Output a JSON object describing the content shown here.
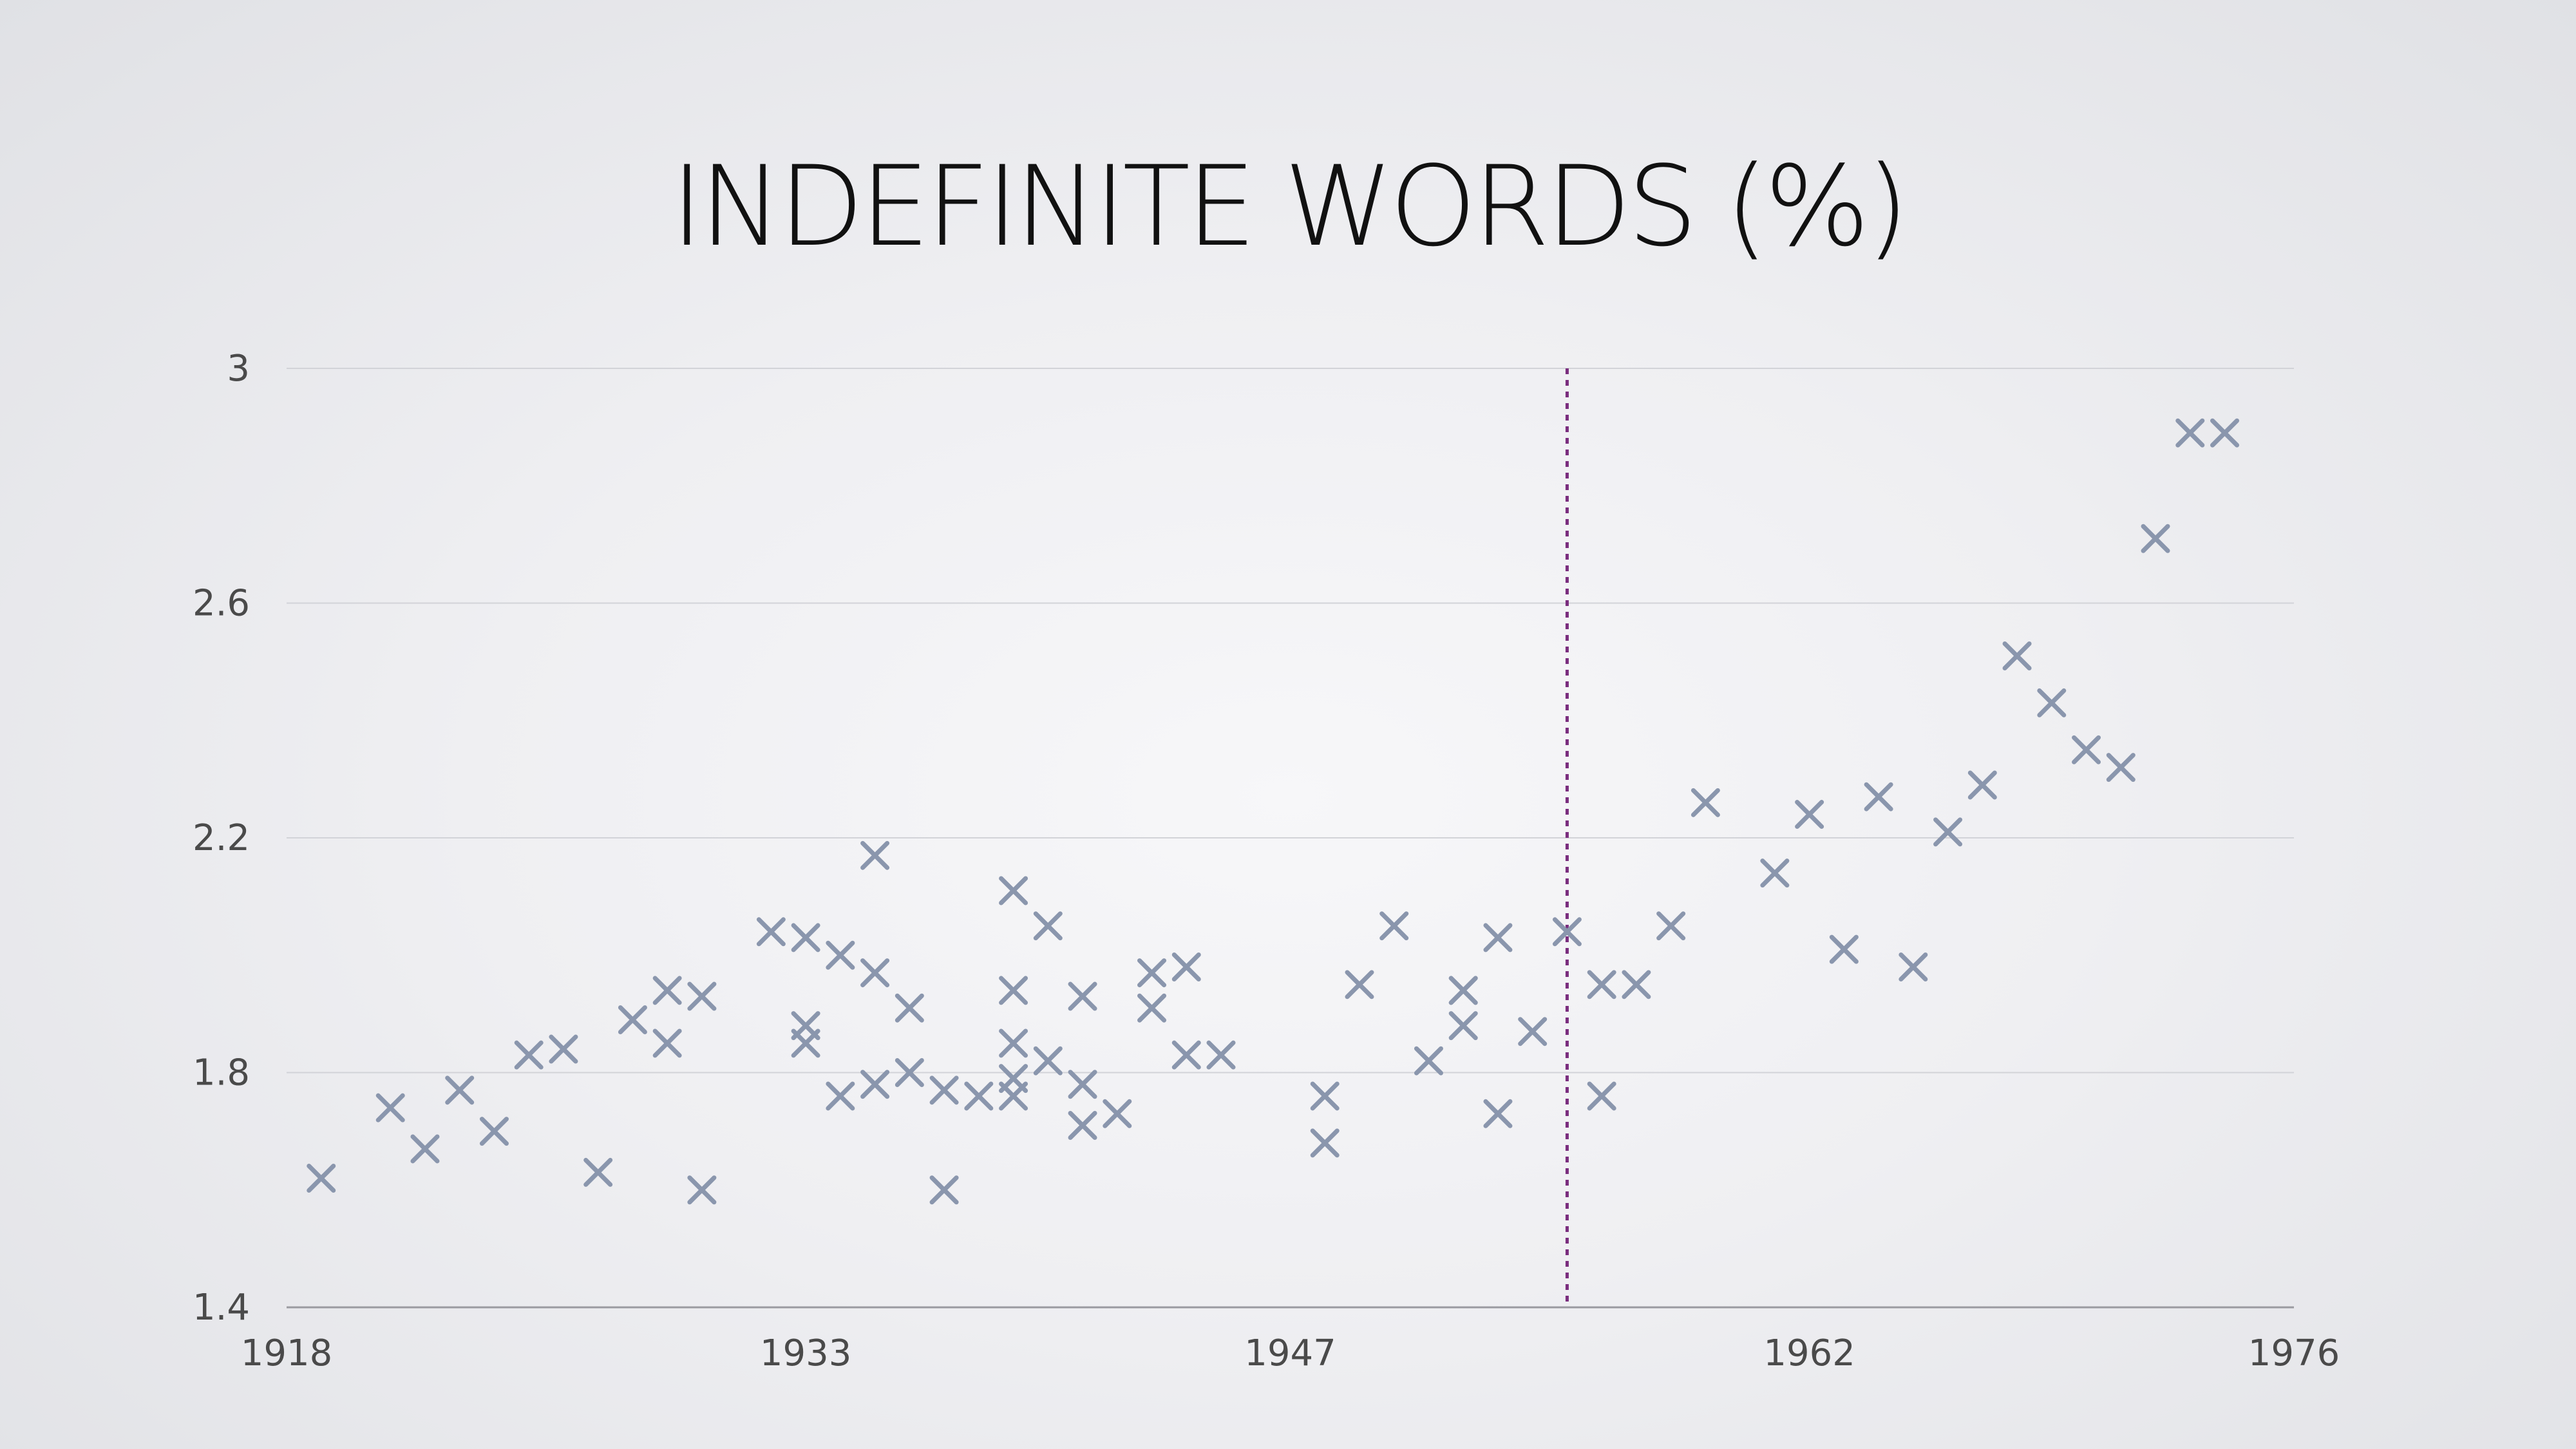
{
  "chart_data": {
    "type": "scatter",
    "title": "INDEFINITE WORDS (%)",
    "xlabel": "",
    "ylabel": "",
    "xlim": [
      1918,
      1976
    ],
    "ylim": [
      1.4,
      3.0
    ],
    "x_ticks": [
      "1918",
      "1933",
      "1947",
      "1962",
      "1976"
    ],
    "y_ticks": [
      "1.4",
      "1.8",
      "2.2",
      "2.6",
      "3"
    ],
    "grid": "horizontal",
    "marker": "x",
    "marker_color": "#8a96ad",
    "reference_line": {
      "x": 1955,
      "style": "dotted",
      "color": "#7a2d7e"
    },
    "series": [
      {
        "x": [
          1919,
          1921,
          1922,
          1923,
          1924,
          1925,
          1926,
          1927,
          1928,
          1929,
          1929,
          1930,
          1930,
          1932,
          1933,
          1933,
          1933,
          1934,
          1934,
          1935,
          1935,
          1935,
          1936,
          1936,
          1937,
          1937,
          1938,
          1939,
          1939,
          1939,
          1939,
          1939,
          1940,
          1940,
          1941,
          1941,
          1941,
          1942,
          1943,
          1943,
          1944,
          1944,
          1945,
          1948,
          1948,
          1949,
          1950,
          1951,
          1952,
          1952,
          1952,
          1953,
          1953,
          1954,
          1955,
          1956,
          1956,
          1957,
          1958,
          1959,
          1961,
          1962,
          1963,
          1964,
          1965,
          1966,
          1967,
          1968,
          1969,
          1970,
          1971,
          1972,
          1973,
          1974
        ],
        "y": [
          1.62,
          1.74,
          1.67,
          1.77,
          1.7,
          1.83,
          1.84,
          1.63,
          1.89,
          1.94,
          1.85,
          1.93,
          1.6,
          2.04,
          1.85,
          2.03,
          1.88,
          1.76,
          2.0,
          1.78,
          1.97,
          2.17,
          1.8,
          1.91,
          1.77,
          1.6,
          1.76,
          2.11,
          1.94,
          1.85,
          1.79,
          1.76,
          2.05,
          1.82,
          1.93,
          1.78,
          1.71,
          1.73,
          1.91,
          1.97,
          1.98,
          1.83,
          1.83,
          1.76,
          1.68,
          1.95,
          2.05,
          1.82,
          1.94,
          1.94,
          1.88,
          2.03,
          1.73,
          1.87,
          2.04,
          1.95,
          1.76,
          1.95,
          2.05,
          2.26,
          2.14,
          2.24,
          2.01,
          2.27,
          1.98,
          2.21,
          2.29,
          2.51,
          2.43,
          2.35,
          2.32,
          2.71,
          2.89,
          2.89
        ]
      }
    ]
  }
}
